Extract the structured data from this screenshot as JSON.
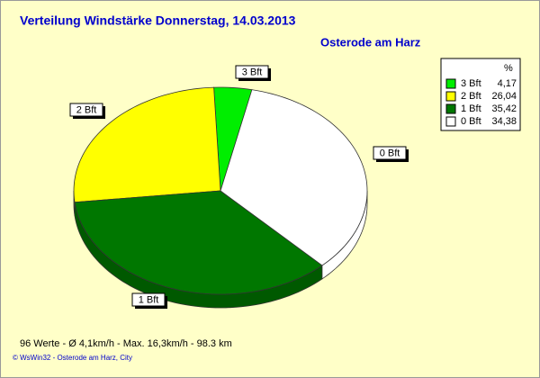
{
  "chart_data": {
    "type": "pie",
    "title": "Verteilung Windstärke  Donnerstag, 14.03.2013",
    "subtitle": "Osterode am Harz",
    "categories": [
      "3 Bft",
      "2 Bft",
      "1 Bft",
      "0 Bft"
    ],
    "values": [
      4.17,
      26.04,
      35.42,
      34.38
    ],
    "value_labels": [
      "4,17",
      "26,04",
      "35,42",
      "34,38"
    ],
    "colors": [
      "#00ee00",
      "#ffff00",
      "#007700",
      "#ffffff"
    ],
    "legend_header": "%",
    "legend": "top-right",
    "footer": "96 Werte   -   Ø 4,1km/h  -  Max. 16,3km/h   -   98.3 km",
    "credit": "© WsWin32  -  Osterode am Harz, City"
  }
}
